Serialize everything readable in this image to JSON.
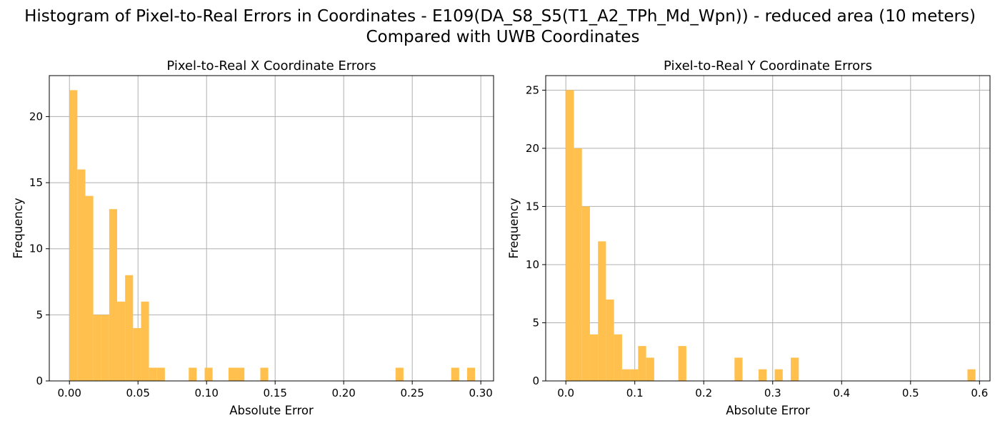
{
  "figure": {
    "title_line1": "Histogram of Pixel-to-Real Errors in Coordinates - E109(DA_S8_S5(T1_A2_TPh_Md_Wpn)) - reduced area (10 meters)",
    "title_line2": "Compared with UWB Coordinates"
  },
  "colors": {
    "bar": "#ffc04d",
    "grid": "#b0b0b0",
    "axis": "#000000"
  },
  "chart_data": [
    {
      "type": "bar",
      "title": "Pixel-to-Real X Coordinate Errors",
      "xlabel": "Absolute Error",
      "ylabel": "Frequency",
      "grid": true,
      "xlim": [
        -0.0147,
        0.3093
      ],
      "ylim": [
        0,
        23.1
      ],
      "xticks": [
        0.0,
        0.05,
        0.1,
        0.15,
        0.2,
        0.25,
        0.3
      ],
      "xtick_labels": [
        "0.00",
        "0.05",
        "0.10",
        "0.15",
        "0.20",
        "0.25",
        "0.30"
      ],
      "yticks": [
        0,
        5,
        10,
        15,
        20
      ],
      "ytick_labels": [
        "0",
        "5",
        "10",
        "15",
        "20"
      ],
      "bin_start": 0.0,
      "bin_width": 0.0058,
      "counts": [
        22,
        16,
        14,
        5,
        5,
        13,
        6,
        8,
        4,
        6,
        1,
        1,
        0,
        0,
        0,
        1,
        0,
        1,
        0,
        0,
        1,
        1,
        0,
        0,
        1,
        0,
        0,
        0,
        0,
        0,
        0,
        0,
        0,
        0,
        0,
        0,
        0,
        0,
        0,
        0,
        0,
        1,
        0,
        0,
        0,
        0,
        0,
        0,
        1,
        0,
        1
      ]
    },
    {
      "type": "bar",
      "title": "Pixel-to-Real Y Coordinate Errors",
      "xlabel": "Absolute Error",
      "ylabel": "Frequency",
      "grid": true,
      "xlim": [
        -0.0292,
        0.6152
      ],
      "ylim": [
        0,
        26.25
      ],
      "xticks": [
        0.0,
        0.1,
        0.2,
        0.3,
        0.4,
        0.5,
        0.6
      ],
      "xtick_labels": [
        "0.0",
        "0.1",
        "0.2",
        "0.3",
        "0.4",
        "0.5",
        "0.6"
      ],
      "yticks": [
        0,
        5,
        10,
        15,
        20,
        25
      ],
      "ytick_labels": [
        "0",
        "5",
        "10",
        "15",
        "20",
        "25"
      ],
      "bin_start": 0.0,
      "bin_width": 0.01165,
      "counts": [
        25,
        20,
        15,
        4,
        12,
        7,
        4,
        1,
        1,
        3,
        2,
        0,
        0,
        0,
        3,
        0,
        0,
        0,
        0,
        0,
        0,
        2,
        0,
        0,
        1,
        0,
        1,
        0,
        2,
        0,
        0,
        0,
        0,
        0,
        0,
        0,
        0,
        0,
        0,
        0,
        0,
        0,
        0,
        0,
        0,
        0,
        0,
        0,
        0,
        0,
        1
      ]
    }
  ]
}
